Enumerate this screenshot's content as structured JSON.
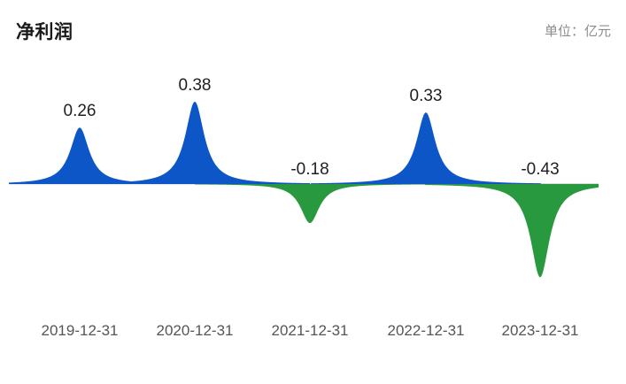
{
  "header": {
    "title": "净利润",
    "unit_label": "单位：亿元"
  },
  "chart_data": {
    "type": "area",
    "subtype": "spike-peaks",
    "title": "净利润",
    "unit": "亿元",
    "categories": [
      "2019-12-31",
      "2020-12-31",
      "2021-12-31",
      "2022-12-31",
      "2023-12-31"
    ],
    "values": [
      0.26,
      0.38,
      -0.18,
      0.33,
      -0.43
    ],
    "data_labels": [
      "0.26",
      "0.38",
      "-0.18",
      "0.33",
      "-0.43"
    ],
    "baseline": 0,
    "ylim": [
      -0.5,
      0.45
    ],
    "grid": false,
    "legend": "none",
    "colors": {
      "positive": "#0c56c8",
      "negative": "#28993e",
      "axis_line": "#dbdbdb",
      "value_text": "#1f1f1f",
      "category_text": "#555555",
      "title_text": "#1a1a1a",
      "unit_text": "#8c8c8c"
    }
  }
}
